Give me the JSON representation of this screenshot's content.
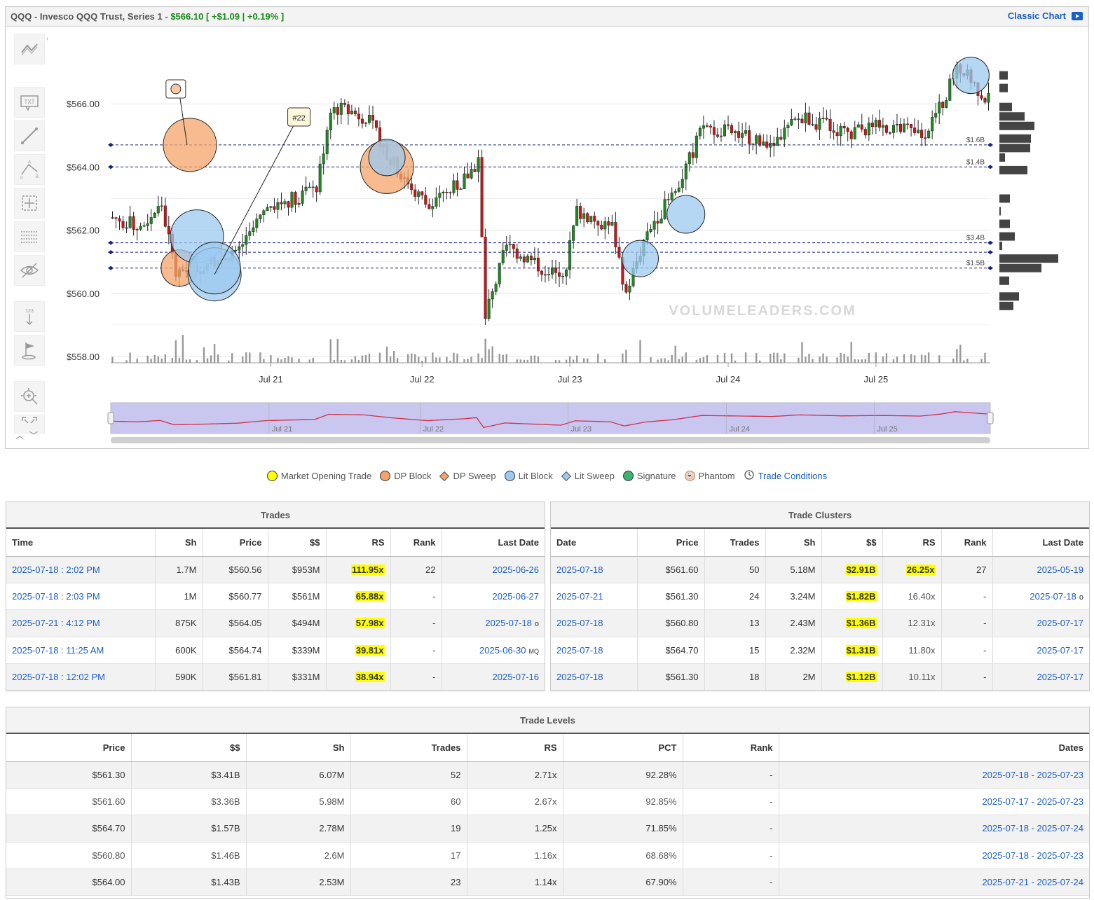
{
  "header": {
    "symbol_title": "QQQ - Invesco QQQ Trust, Series 1 -",
    "price": "$566.10",
    "change": "[ +$1.09 | +0.19% ]",
    "classic_chart": "Classic Chart"
  },
  "toolbar": {
    "icons": [
      "trend-lines-icon",
      "text-annotation-icon",
      "line-draw-icon",
      "fibonacci-icon",
      "measure-icon",
      "horizontal-lines-icon",
      "hide-drawings-icon",
      "number-markers-icon",
      "flag-marker-icon",
      "zoom-icon",
      "fullscreen-icon"
    ],
    "txt_label": "TXT",
    "num_label": "123"
  },
  "chart_data": {
    "type": "candlestick",
    "watermark": "VOLUMELEADERS.COM",
    "y_ticks": [
      "$566.00",
      "$564.00",
      "$562.00",
      "$560.00",
      "$558.00"
    ],
    "y_tick_values": [
      566,
      564,
      562,
      560,
      558
    ],
    "x_ticks": [
      "Jul 21",
      "Jul 22",
      "Jul 23",
      "Jul 24",
      "Jul 25"
    ],
    "ylim": [
      557.8,
      568.0
    ],
    "x_count": 250,
    "x_tick_index": [
      45,
      88,
      130,
      175,
      217
    ],
    "level_lines": [
      {
        "price": 564.7,
        "label": "$1.6B"
      },
      {
        "price": 564.0,
        "label": "$1.4B"
      },
      {
        "price": 561.6,
        "label": "$3.4B"
      },
      {
        "price": 561.3,
        "label": ""
      },
      {
        "price": 560.8,
        "label": "$1.5B"
      }
    ],
    "annotations": [
      {
        "label": "#22"
      },
      {
        "label": "phantom-marker"
      }
    ],
    "bubbles": [
      {
        "type": "dp",
        "i": 22,
        "p": 564.7,
        "r": 38
      },
      {
        "type": "dp",
        "i": 19,
        "p": 560.8,
        "r": 26
      },
      {
        "type": "lit",
        "i": 24,
        "p": 561.8,
        "r": 38
      },
      {
        "type": "lit",
        "i": 29,
        "p": 560.6,
        "r": 38
      },
      {
        "type": "lit",
        "i": 29,
        "p": 560.8,
        "r": 37
      },
      {
        "type": "dp",
        "i": 78,
        "p": 564.0,
        "r": 38
      },
      {
        "type": "lit",
        "i": 78,
        "p": 564.3,
        "r": 26
      },
      {
        "type": "lit",
        "i": 150,
        "p": 561.1,
        "r": 26
      },
      {
        "type": "lit",
        "i": 163,
        "p": 562.5,
        "r": 27
      },
      {
        "type": "lit",
        "i": 244,
        "p": 566.9,
        "r": 26
      }
    ],
    "depth_bars": [
      {
        "price": 566.9,
        "value": 0.12
      },
      {
        "price": 566.5,
        "value": 0.12
      },
      {
        "price": 565.9,
        "value": 0.18
      },
      {
        "price": 565.6,
        "value": 0.36
      },
      {
        "price": 565.3,
        "value": 0.5
      },
      {
        "price": 564.9,
        "value": 0.45
      },
      {
        "price": 564.6,
        "value": 0.44
      },
      {
        "price": 564.3,
        "value": 0.08
      },
      {
        "price": 563.9,
        "value": 0.4
      },
      {
        "price": 563.0,
        "value": 0.15
      },
      {
        "price": 562.6,
        "value": 0.02
      },
      {
        "price": 562.2,
        "value": 0.15
      },
      {
        "price": 561.8,
        "value": 0.22
      },
      {
        "price": 561.5,
        "value": 0.04
      },
      {
        "price": 561.1,
        "value": 0.84
      },
      {
        "price": 560.8,
        "value": 0.6
      },
      {
        "price": 560.4,
        "value": 0.14
      },
      {
        "price": 559.9,
        "value": 0.28
      },
      {
        "price": 559.6,
        "value": 0.2
      }
    ],
    "seed": 7
  },
  "legend": {
    "items": [
      {
        "name": "market-opening-trade",
        "label": "Market Opening Trade",
        "color": "#ffff00",
        "shape": "dot"
      },
      {
        "name": "dp-block",
        "label": "DP Block",
        "color": "#f4a46a",
        "shape": "dot"
      },
      {
        "name": "dp-sweep",
        "label": "DP Sweep",
        "color": "#f4a46a",
        "shape": "diamond"
      },
      {
        "name": "lit-block",
        "label": "Lit Block",
        "color": "#9ccaf0",
        "shape": "dot"
      },
      {
        "name": "lit-sweep",
        "label": "Lit Sweep",
        "color": "#9ccaf0",
        "shape": "diamond"
      },
      {
        "name": "signature",
        "label": "Signature",
        "color": "#3cb370",
        "shape": "dot"
      },
      {
        "name": "phantom",
        "label": "Phantom",
        "color": "#f4c9a8",
        "shape": "phantom"
      }
    ],
    "trade_conditions": "Trade Conditions"
  },
  "trades": {
    "title": "Trades",
    "columns": [
      "Time",
      "Sh",
      "Price",
      "$$",
      "RS",
      "Rank",
      "Last Date"
    ],
    "rows": [
      {
        "time": "2025-07-18 : 2:02 PM",
        "sh": "1.7M",
        "price": "$560.56",
        "dollars": "$953M",
        "rs": "111.95x",
        "rank": "22",
        "last": "2025-06-26",
        "sup": ""
      },
      {
        "time": "2025-07-18 : 2:03 PM",
        "sh": "1M",
        "price": "$560.77",
        "dollars": "$561M",
        "rs": "65.88x",
        "rank": "-",
        "last": "2025-06-27",
        "sup": ""
      },
      {
        "time": "2025-07-21 : 4:12 PM",
        "sh": "875K",
        "price": "$564.05",
        "dollars": "$494M",
        "rs": "57.98x",
        "rank": "-",
        "last": "2025-07-18",
        "sup": "o"
      },
      {
        "time": "2025-07-18 : 11:25 AM",
        "sh": "600K",
        "price": "$564.74",
        "dollars": "$339M",
        "rs": "39.81x",
        "rank": "-",
        "last": "2025-06-30",
        "sup": "MQ"
      },
      {
        "time": "2025-07-18 : 12:02 PM",
        "sh": "590K",
        "price": "$561.81",
        "dollars": "$331M",
        "rs": "38.94x",
        "rank": "-",
        "last": "2025-07-16",
        "sup": ""
      }
    ]
  },
  "clusters": {
    "title": "Trade Clusters",
    "columns": [
      "Date",
      "Price",
      "Trades",
      "Sh",
      "$$",
      "RS",
      "Rank",
      "Last Date"
    ],
    "rows": [
      {
        "date": "2025-07-18",
        "price": "$561.60",
        "trades": "50",
        "sh": "5.18M",
        "dollars": "$2.91B",
        "rs": "26.25x",
        "rs_hl": true,
        "rank": "27",
        "last": "2025-05-19",
        "sup": ""
      },
      {
        "date": "2025-07-21",
        "price": "$561.30",
        "trades": "24",
        "sh": "3.24M",
        "dollars": "$1.82B",
        "rs": "16.40x",
        "rs_hl": false,
        "rank": "-",
        "last": "2025-07-18",
        "sup": "o"
      },
      {
        "date": "2025-07-18",
        "price": "$560.80",
        "trades": "13",
        "sh": "2.43M",
        "dollars": "$1.36B",
        "rs": "12.31x",
        "rs_hl": false,
        "rank": "-",
        "last": "2025-07-17",
        "sup": ""
      },
      {
        "date": "2025-07-18",
        "price": "$564.70",
        "trades": "15",
        "sh": "2.32M",
        "dollars": "$1.31B",
        "rs": "11.80x",
        "rs_hl": false,
        "rank": "-",
        "last": "2025-07-17",
        "sup": ""
      },
      {
        "date": "2025-07-18",
        "price": "$561.30",
        "trades": "18",
        "sh": "2M",
        "dollars": "$1.12B",
        "rs": "10.11x",
        "rs_hl": false,
        "rank": "-",
        "last": "2025-07-17",
        "sup": ""
      }
    ]
  },
  "levels": {
    "title": "Trade Levels",
    "columns": [
      "Price",
      "$$",
      "Sh",
      "Trades",
      "RS",
      "PCT",
      "Rank",
      "Dates"
    ],
    "rows": [
      {
        "price": "$561.30",
        "dollars": "$3.41B",
        "sh": "6.07M",
        "trades": "52",
        "rs": "2.71x",
        "pct": "92.28%",
        "rank": "-",
        "dates": "2025-07-18 - 2025-07-23"
      },
      {
        "price": "$561.60",
        "dollars": "$3.36B",
        "sh": "5.98M",
        "trades": "60",
        "rs": "2.67x",
        "pct": "92.85%",
        "rank": "-",
        "dates": "2025-07-17 - 2025-07-23"
      },
      {
        "price": "$564.70",
        "dollars": "$1.57B",
        "sh": "2.78M",
        "trades": "19",
        "rs": "1.25x",
        "pct": "71.85%",
        "rank": "-",
        "dates": "2025-07-18 - 2025-07-24"
      },
      {
        "price": "$560.80",
        "dollars": "$1.46B",
        "sh": "2.6M",
        "trades": "17",
        "rs": "1.16x",
        "pct": "68.68%",
        "rank": "-",
        "dates": "2025-07-18 - 2025-07-23"
      },
      {
        "price": "$564.00",
        "dollars": "$1.43B",
        "sh": "2.53M",
        "trades": "23",
        "rs": "1.14x",
        "pct": "67.90%",
        "rank": "-",
        "dates": "2025-07-21 - 2025-07-24"
      }
    ]
  },
  "colors": {
    "up": "#1e8a1e",
    "down": "#d11414",
    "level_line": "#1a237e",
    "dp": "#f4a46a",
    "lit": "#9ccaf0",
    "navigator_fill": "#c9c6f0",
    "navigator_line": "#d0314a",
    "highlight": "#ffff00"
  }
}
